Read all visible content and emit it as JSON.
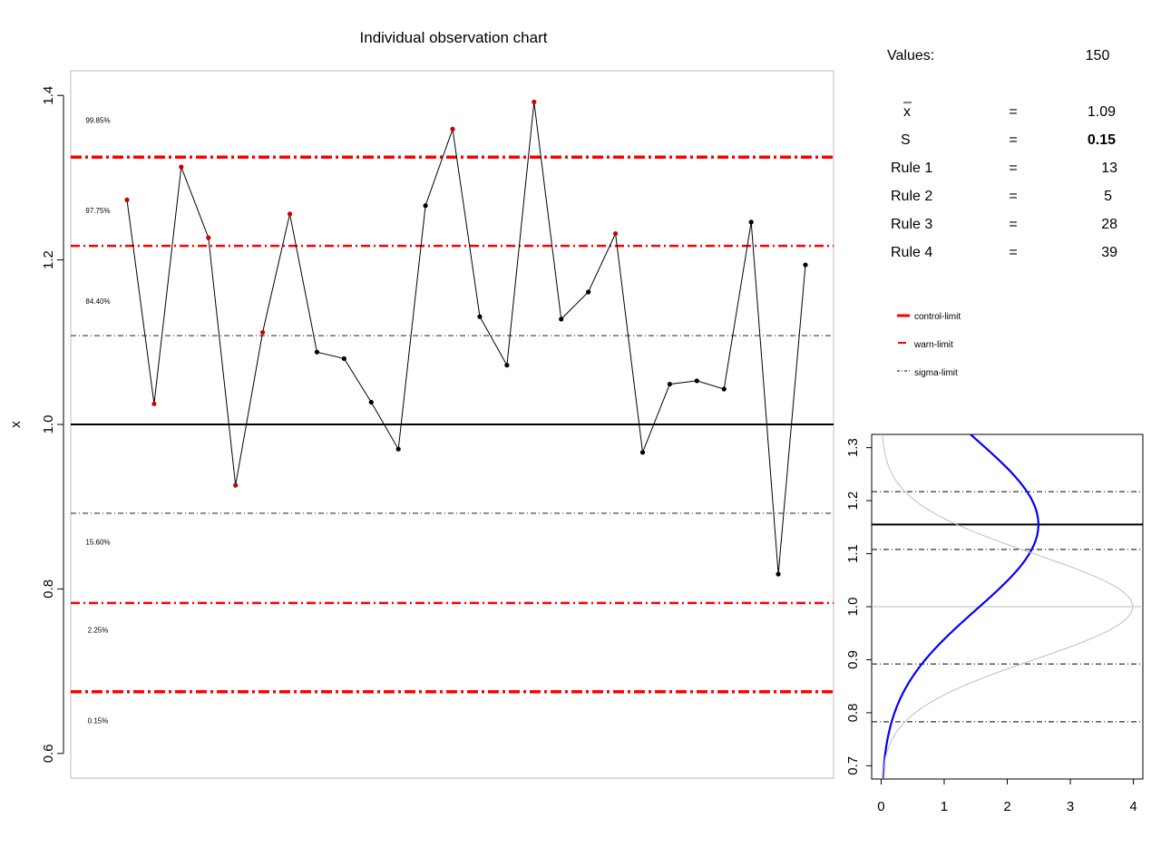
{
  "chart_data": [
    {
      "type": "line",
      "title": "Individual observation chart",
      "ylabel": "x",
      "xlabel": "",
      "ylim": [
        0.57,
        1.43
      ],
      "yticks": [
        "0.6",
        "0.8",
        "1.0",
        "1.2",
        "1.4"
      ],
      "center_line": 1.0,
      "control_limits": [
        0.675,
        1.325
      ],
      "warn_limits": [
        0.783,
        1.217
      ],
      "sigma_limits": [
        0.892,
        1.108
      ],
      "zone_labels": [
        {
          "text": "99.85%",
          "y": 1.37
        },
        {
          "text": "97.75%",
          "y": 1.26
        },
        {
          "text": "84.40%",
          "y": 1.15
        },
        {
          "text": "15.60%",
          "y": 0.857
        },
        {
          "text": "2.25%",
          "y": 0.75
        },
        {
          "text": "0.15%",
          "y": 0.64
        }
      ],
      "series": [
        {
          "x": [
            1,
            2,
            3,
            4,
            5,
            6,
            7,
            8,
            9,
            10,
            11,
            12,
            13,
            14,
            15,
            16,
            17,
            18,
            19,
            20,
            21,
            22,
            23,
            24,
            25,
            26
          ],
          "values": [
            1.273,
            1.025,
            1.313,
            1.227,
            0.926,
            1.112,
            1.256,
            1.088,
            1.08,
            1.027,
            0.97,
            1.266,
            1.359,
            1.131,
            1.072,
            1.392,
            1.128,
            1.161,
            1.232,
            0.966,
            1.049,
            1.053,
            1.043,
            1.246,
            0.818,
            1.194
          ],
          "flagged": [
            true,
            true,
            true,
            true,
            true,
            true,
            true,
            false,
            false,
            false,
            false,
            false,
            true,
            false,
            false,
            true,
            false,
            false,
            true,
            false,
            false,
            false,
            false,
            false,
            false,
            false
          ]
        }
      ]
    },
    {
      "type": "line",
      "title": "",
      "xlabel": "",
      "ylabel": "",
      "xlim": [
        -0.15,
        4.15
      ],
      "ylim": [
        0.675,
        1.325
      ],
      "xticks": [
        "0",
        "1",
        "2",
        "3",
        "4"
      ],
      "yticks": [
        "0.7",
        "0.8",
        "0.9",
        "1.0",
        "1.1",
        "1.2",
        "1.3"
      ],
      "center_line": 1.155,
      "sigma_lines": [
        0.783,
        0.892,
        1.108,
        1.217
      ],
      "reference_line": 1.0,
      "curves": [
        {
          "mean": 1.155,
          "sd": 0.16,
          "color": "#0000ff"
        },
        {
          "mean": 1.0,
          "sd": 0.1,
          "color": "#bebebe"
        }
      ]
    }
  ],
  "stats": {
    "values_label": "Values:",
    "values_count": "150",
    "rows": [
      {
        "label": "x",
        "eq": "=",
        "value": "1.09"
      },
      {
        "label": "S",
        "eq": "=",
        "value": "0.15"
      },
      {
        "label": "Rule 1",
        "eq": "=",
        "value": "13"
      },
      {
        "label": "Rule 2",
        "eq": "=",
        "value": "5"
      },
      {
        "label": "Rule 3",
        "eq": "=",
        "value": "28"
      },
      {
        "label": "Rule 4",
        "eq": "=",
        "value": "39"
      }
    ]
  },
  "legend": {
    "items": [
      {
        "label": "control-limit"
      },
      {
        "label": "warn-limit"
      },
      {
        "label": "sigma-limit"
      }
    ]
  },
  "colors": {
    "limits": "#ff0000",
    "flagged_point": "#cc0000",
    "normal_point": "#000000",
    "box": "#bebebe",
    "density_blue": "#0000ff",
    "density_gray": "#bebebe"
  }
}
